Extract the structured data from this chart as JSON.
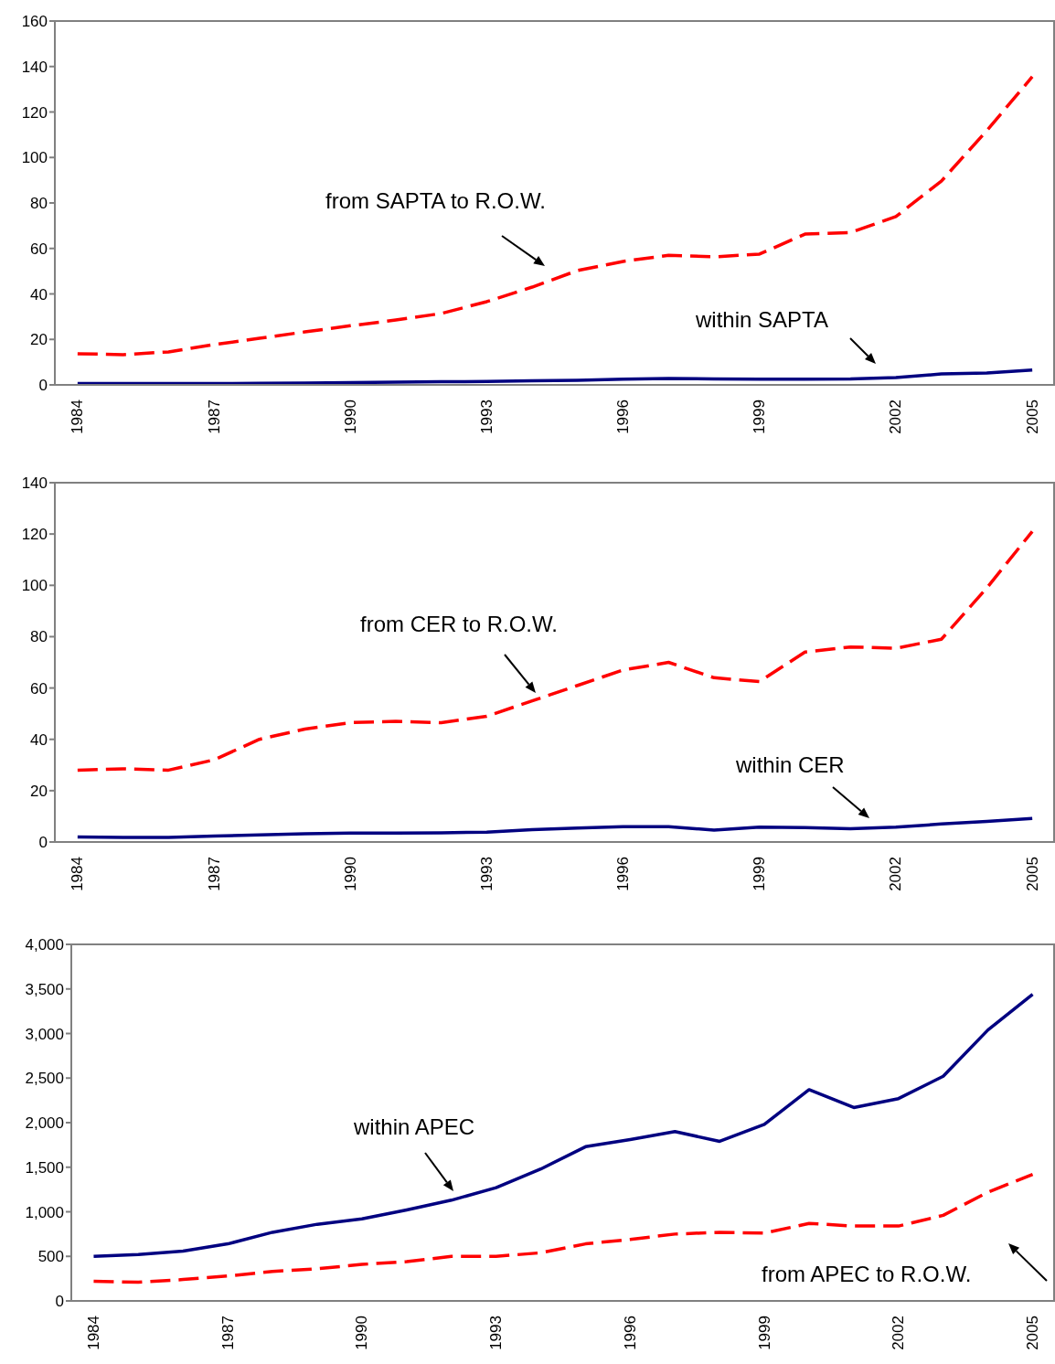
{
  "chart_data": [
    {
      "type": "line",
      "categories": [
        "1984",
        null,
        null,
        "1987",
        null,
        null,
        "1990",
        null,
        null,
        "1993",
        null,
        null,
        "1996",
        null,
        null,
        "1999",
        null,
        null,
        "2002",
        null,
        null,
        "2005"
      ],
      "series": [
        {
          "color": "#ff0000",
          "line_style": "dashed",
          "values": [
            13.7,
            13.3,
            14.5,
            17.7,
            20.5,
            23.3,
            26,
            28.5,
            31.4,
            36.6,
            43,
            50.3,
            54.3,
            57,
            56.3,
            57.5,
            66.3,
            67,
            74,
            89.6,
            111.8,
            135.5
          ]
        },
        {
          "color": "#000080",
          "line_style": "solid",
          "values": [
            0.6,
            0.6,
            0.6,
            0.6,
            0.7,
            0.8,
            1,
            1.2,
            1.4,
            1.5,
            1.8,
            2,
            2.5,
            2.8,
            2.6,
            2.5,
            2.5,
            2.6,
            3.2,
            4.8,
            5.2,
            6.5
          ]
        }
      ],
      "ylim": [
        0,
        160
      ],
      "yticks": [
        0,
        20,
        40,
        60,
        80,
        100,
        120,
        140,
        160
      ],
      "grid": false,
      "legend": false,
      "annotations": [
        "from SAPTA to R.O.W.",
        "within SAPTA"
      ]
    },
    {
      "type": "line",
      "categories": [
        "1984",
        null,
        null,
        "1987",
        null,
        null,
        "1990",
        null,
        null,
        "1993",
        null,
        null,
        "1996",
        null,
        null,
        "1999",
        null,
        null,
        "2002",
        null,
        null,
        "2005"
      ],
      "series": [
        {
          "color": "#ff0000",
          "line_style": "dashed",
          "values": [
            28,
            28.5,
            28,
            32,
            40,
            44,
            46.5,
            47,
            46.5,
            49,
            55,
            61,
            67,
            70,
            64,
            62.5,
            74,
            76,
            75.5,
            79,
            99,
            121
          ]
        },
        {
          "color": "#000080",
          "line_style": "solid",
          "values": [
            2,
            1.8,
            1.8,
            2.3,
            2.8,
            3.2,
            3.5,
            3.5,
            3.6,
            3.8,
            4.8,
            5.4,
            6,
            6,
            4.6,
            5.8,
            5.6,
            5.2,
            5.8,
            7,
            8,
            9.2
          ]
        }
      ],
      "ylim": [
        0,
        140
      ],
      "yticks": [
        0,
        20,
        40,
        60,
        80,
        100,
        120,
        140
      ],
      "grid": false,
      "legend": false,
      "annotations": [
        "from CER to R.O.W.",
        "within CER"
      ]
    },
    {
      "type": "line",
      "categories": [
        "1984",
        null,
        null,
        "1987",
        null,
        null,
        "1990",
        null,
        null,
        "1993",
        null,
        null,
        "1996",
        null,
        null,
        "1999",
        null,
        null,
        "2002",
        null,
        null,
        "2005"
      ],
      "series": [
        {
          "color": "#000080",
          "line_style": "solid",
          "values": [
            500,
            520,
            560,
            640,
            770,
            860,
            920,
            1020,
            1130,
            1270,
            1480,
            1730,
            1810,
            1900,
            1790,
            1980,
            2370,
            2170,
            2270,
            2520,
            3040,
            3440
          ]
        },
        {
          "color": "#ff0000",
          "line_style": "dashed",
          "values": [
            220,
            210,
            240,
            280,
            330,
            360,
            410,
            440,
            500,
            500,
            540,
            640,
            690,
            750,
            770,
            760,
            870,
            840,
            840,
            960,
            1220,
            1420
          ]
        }
      ],
      "ylim": [
        0,
        4000
      ],
      "yticks": [
        0,
        {
          "value": 500,
          "label": "500"
        },
        {
          "value": 1000,
          "label": "1,000"
        },
        {
          "value": 1500,
          "label": "1,500"
        },
        {
          "value": 2000,
          "label": "2,000"
        },
        {
          "value": 2500,
          "label": "2,500"
        },
        {
          "value": 3000,
          "label": "3,000"
        },
        {
          "value": 3500,
          "label": "3,500"
        },
        {
          "value": 4000,
          "label": "4,000"
        }
      ],
      "grid": false,
      "legend": false,
      "annotations": [
        "within APEC",
        "from APEC to R.O.W."
      ]
    }
  ]
}
